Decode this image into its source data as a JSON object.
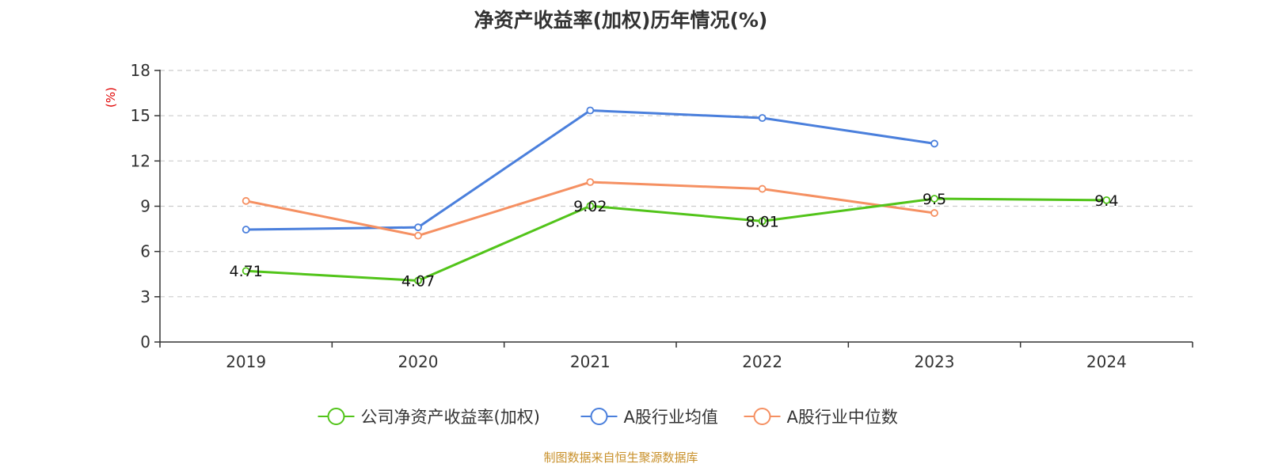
{
  "chart_data": {
    "type": "line",
    "title": "净资产收益率(加权)历年情况(%)",
    "xlabel": "",
    "ylabel": "(%)",
    "ylim": [
      0,
      18
    ],
    "yticks": [
      0,
      3,
      6,
      9,
      12,
      15,
      18
    ],
    "grid": true,
    "legend_position": "bottom",
    "categories": [
      "2019",
      "2020",
      "2021",
      "2022",
      "2023",
      "2024"
    ],
    "series": [
      {
        "name": "公司净资产收益率(加权)",
        "color": "#52c41a",
        "values": [
          4.71,
          4.07,
          9.02,
          8.01,
          9.5,
          9.4
        ],
        "labels": [
          "4.71",
          "4.07",
          "9.02",
          "8.01",
          "9.5",
          "9.4"
        ],
        "show_labels": true
      },
      {
        "name": "A股行业均值",
        "color": "#4a7fdc",
        "values": [
          7.45,
          7.6,
          15.35,
          14.85,
          13.15,
          null
        ],
        "show_labels": false
      },
      {
        "name": "A股行业中位数",
        "color": "#f59062",
        "values": [
          9.35,
          7.05,
          10.6,
          10.15,
          8.55,
          null
        ],
        "show_labels": false
      }
    ],
    "source": "制图数据来自恒生聚源数据库",
    "colors": {
      "axis": "#333333",
      "grid": "#cccccc",
      "ylabel": "#e00000",
      "source": "#c8902a"
    }
  }
}
